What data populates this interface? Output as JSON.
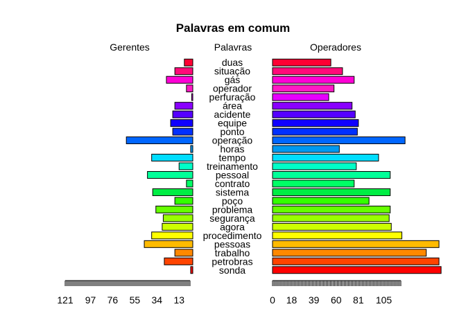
{
  "chart_data": {
    "type": "bar",
    "title": "Palavras em comum",
    "left_label": "Gerentes",
    "center_label": "Palavras",
    "right_label": "Operadores",
    "categories": [
      "duas",
      "situação",
      "gás",
      "operador",
      "perfuração",
      "área",
      "acidente",
      "equipe",
      "ponto",
      "operação",
      "horas",
      "tempo",
      "treinamento",
      "pessoal",
      "contrato",
      "sistema",
      "poço",
      "problema",
      "segurança",
      "agora",
      "procedimento",
      "pessoas",
      "trabalho",
      "petrobras",
      "sonda"
    ],
    "series": [
      {
        "name": "Gerentes",
        "values": [
          8,
          17,
          25,
          6,
          1,
          17,
          19,
          21,
          19,
          63,
          2,
          39,
          13,
          43,
          6,
          38,
          17,
          35,
          28,
          29,
          39,
          46,
          17,
          27,
          2
        ]
      },
      {
        "name": "Operadores",
        "values": [
          55,
          66,
          77,
          58,
          53,
          75,
          78,
          81,
          80,
          125,
          63,
          100,
          79,
          111,
          77,
          111,
          91,
          111,
          110,
          112,
          122,
          157,
          145,
          157,
          159
        ]
      }
    ],
    "colors": [
      "#FF0033",
      "#FF0A79",
      "#FF00D6",
      "#FF1AC4",
      "#E600FF",
      "#8A00FF",
      "#5500FF",
      "#1000FF",
      "#0030FF",
      "#0066FF",
      "#0099F0",
      "#00DDFF",
      "#00FFC8",
      "#00FF99",
      "#00FF66",
      "#00EE44",
      "#33FF00",
      "#66FF00",
      "#99FF00",
      "#CCFF00",
      "#FFFF00",
      "#FFBB00",
      "#FF8800",
      "#FF4400",
      "#FF0000"
    ],
    "left_axis": {
      "ticks": [
        121,
        97,
        76,
        55,
        34,
        13
      ],
      "max": 121
    },
    "right_axis": {
      "ticks": [
        0,
        18,
        39,
        60,
        81,
        105
      ],
      "max": 121
    }
  }
}
